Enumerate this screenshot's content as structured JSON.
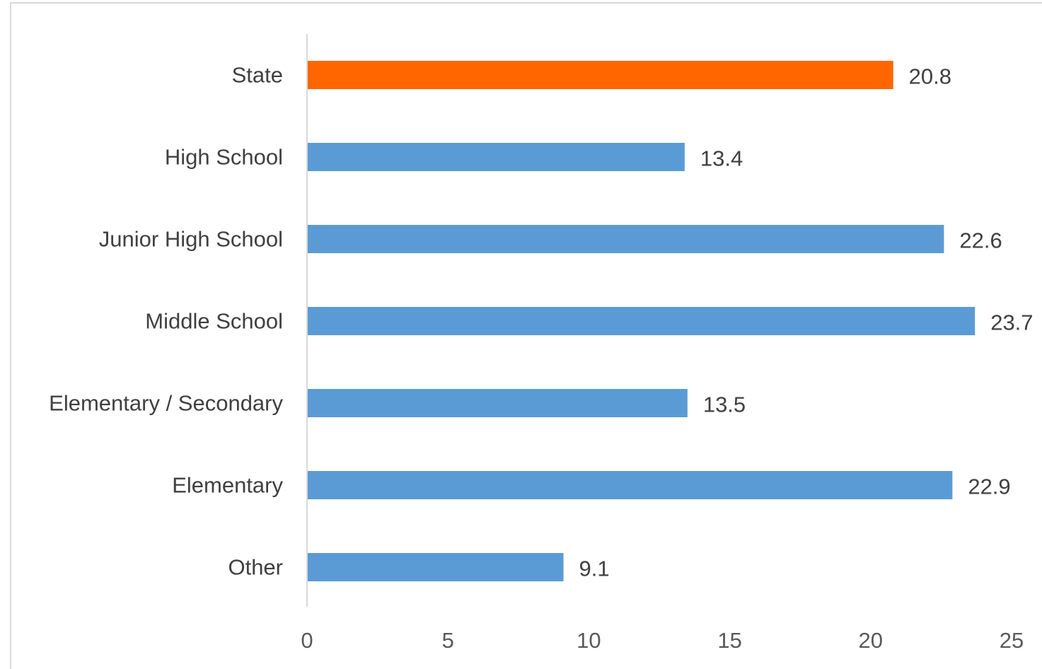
{
  "chart_data": {
    "type": "bar",
    "orientation": "horizontal",
    "categories": [
      "State",
      "High School",
      "Junior High School",
      "Middle School",
      "Elementary / Secondary",
      "Elementary",
      "Other"
    ],
    "values": [
      20.8,
      13.4,
      22.6,
      23.7,
      13.5,
      22.9,
      9.1
    ],
    "value_labels": [
      "20.8",
      "13.4",
      "22.6",
      "23.7",
      "13.5",
      "22.9",
      "9.1"
    ],
    "xlim": [
      0,
      25
    ],
    "x_ticks": [
      0,
      5,
      10,
      15,
      20,
      25
    ],
    "x_tick_labels": [
      "0",
      "5",
      "10",
      "15",
      "20",
      "25"
    ],
    "title": "",
    "xlabel": "",
    "ylabel": "",
    "grid": false,
    "legend": "none",
    "colors": {
      "highlight": "#ff6600",
      "default": "#5b9bd5",
      "axis": "#d9d9d9"
    },
    "highlight_category": "State"
  }
}
